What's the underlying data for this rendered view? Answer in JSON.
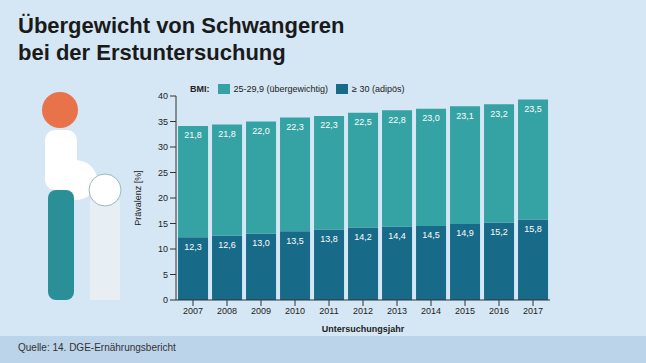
{
  "chart_data": {
    "type": "bar",
    "title": "Übergewicht von Schwangeren bei der Erstuntersuchung",
    "source": "Quelle: 14. DGE-Ernährungsbericht",
    "legend_title": "BMI:",
    "x_label": "Untersuchungsjahr",
    "y_label": "Prävalenz [%]",
    "categories": [
      "2007",
      "2008",
      "2009",
      "2010",
      "2011",
      "2012",
      "2013",
      "2014",
      "2015",
      "2016",
      "2017"
    ],
    "series": [
      {
        "name": "25-29,9 (übergewichtig)",
        "color": "#35a2a3",
        "values": [
          21.8,
          21.8,
          22.0,
          22.3,
          22.3,
          22.5,
          22.8,
          23.0,
          23.1,
          23.2,
          23.5
        ],
        "value_labels": [
          "21,8",
          "21,8",
          "22,0",
          "22,3",
          "22,3",
          "22,5",
          "22,8",
          "23,0",
          "23,1",
          "23,2",
          "23,5"
        ]
      },
      {
        "name": "≥ 30 (adipös)",
        "color": "#176a88",
        "values": [
          12.3,
          12.6,
          13.0,
          13.5,
          13.8,
          14.2,
          14.4,
          14.5,
          14.9,
          15.2,
          15.8
        ],
        "value_labels": [
          "12,3",
          "12,6",
          "13,0",
          "13,5",
          "13,8",
          "14,2",
          "14,4",
          "14,5",
          "14,9",
          "15,2",
          "15,8"
        ]
      }
    ],
    "ylim": [
      0,
      40
    ],
    "yticks": [
      0,
      5,
      10,
      15,
      20,
      25,
      30,
      35,
      40
    ],
    "stacked": true,
    "data_labels": true,
    "grid": false
  }
}
